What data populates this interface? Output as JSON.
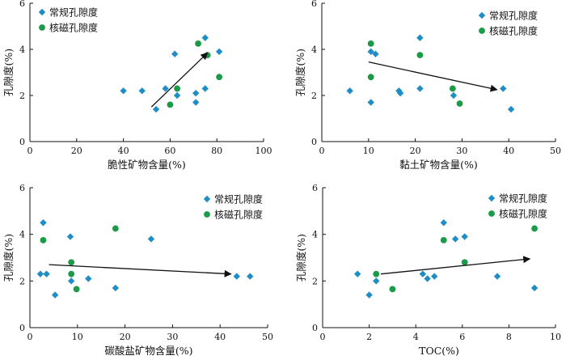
{
  "colors": {
    "conventional": "#1f8ec6",
    "nmr": "#1b9a47",
    "axis": "#111111",
    "arrow": "#111111"
  },
  "legend": {
    "conventional": "常规孔隙度",
    "nmr": "核磁孔隙度",
    "placement": "top-left"
  },
  "chart_data": [
    {
      "type": "scatter",
      "xlabel": "脆性矿物含量(%)",
      "ylabel": "孔隙度(%)",
      "xlim": [
        0,
        100
      ],
      "ylim": [
        0,
        6
      ],
      "xticks": [
        0,
        20,
        40,
        60,
        80,
        100
      ],
      "yticks": [
        0,
        2,
        4,
        6
      ],
      "legend_position": "top-left",
      "series": [
        {
          "name": "常规孔隙度",
          "marker": "diamond",
          "x": [
            40,
            48,
            54,
            58,
            62,
            63,
            71,
            71,
            75,
            75,
            81
          ],
          "y": [
            2.2,
            2.2,
            1.4,
            2.3,
            3.8,
            2.0,
            2.1,
            1.7,
            4.5,
            2.3,
            3.9
          ]
        },
        {
          "name": "核磁孔隙度",
          "marker": "circle",
          "x": [
            60,
            63,
            72,
            76,
            81
          ],
          "y": [
            1.6,
            2.3,
            4.25,
            3.75,
            2.8
          ]
        }
      ],
      "trend_arrow": {
        "from": [
          52,
          1.5
        ],
        "to": [
          76,
          3.85
        ]
      }
    },
    {
      "type": "scatter",
      "xlabel": "黏土矿物含量(%)",
      "ylabel": "孔隙度(%)",
      "xlim": [
        0,
        50
      ],
      "ylim": [
        0,
        6
      ],
      "xticks": [
        0,
        10,
        20,
        30,
        40,
        50
      ],
      "yticks": [
        0,
        2,
        4,
        6
      ],
      "legend_position": "top-right",
      "series": [
        {
          "name": "常规孔隙度",
          "marker": "diamond",
          "x": [
            6,
            10.5,
            10.5,
            11.5,
            16.5,
            16.8,
            21,
            21,
            28.2,
            38.8,
            40.5
          ],
          "y": [
            2.2,
            1.7,
            3.9,
            3.8,
            2.2,
            2.1,
            4.5,
            2.3,
            2.0,
            2.3,
            1.4
          ]
        },
        {
          "name": "核磁孔隙度",
          "marker": "circle",
          "x": [
            10.5,
            10.5,
            21,
            28,
            29.5
          ],
          "y": [
            4.25,
            2.8,
            3.75,
            2.3,
            1.65
          ]
        }
      ],
      "trend_arrow": {
        "from": [
          10,
          3.45
        ],
        "to": [
          37.5,
          2.25
        ]
      }
    },
    {
      "type": "scatter",
      "xlabel": "碳酸盐矿物含量(%)",
      "ylabel": "孔隙度(%)",
      "xlim": [
        0,
        50
      ],
      "ylim": [
        0,
        6
      ],
      "xticks": [
        0,
        10,
        20,
        30,
        40,
        50
      ],
      "yticks": [
        0,
        2,
        4,
        6
      ],
      "legend_position": "top-right",
      "series": [
        {
          "name": "常规孔隙度",
          "marker": "diamond",
          "x": [
            2.2,
            2.8,
            3.5,
            5.3,
            8.5,
            8.7,
            12.3,
            18,
            25.5,
            43.5,
            46.3
          ],
          "y": [
            2.3,
            4.5,
            2.3,
            1.4,
            3.9,
            2.0,
            2.1,
            1.7,
            3.8,
            2.2,
            2.2
          ]
        },
        {
          "name": "核磁孔隙度",
          "marker": "circle",
          "x": [
            2.8,
            8.7,
            8.7,
            9.8,
            18
          ],
          "y": [
            3.75,
            2.8,
            2.3,
            1.65,
            4.25
          ]
        }
      ],
      "trend_arrow": {
        "from": [
          4,
          2.7
        ],
        "to": [
          42.3,
          2.3
        ]
      }
    },
    {
      "type": "scatter",
      "xlabel": "TOC(%)",
      "ylabel": "孔隙度(%)",
      "xlim": [
        0,
        10
      ],
      "ylim": [
        0,
        6
      ],
      "xticks": [
        0,
        2,
        4,
        6,
        8,
        10
      ],
      "yticks": [
        0,
        2,
        4,
        6
      ],
      "legend_position": "top-right",
      "series": [
        {
          "name": "常规孔隙度",
          "marker": "diamond",
          "x": [
            1.5,
            2.0,
            2.3,
            4.3,
            4.5,
            4.8,
            5.2,
            5.7,
            6.1,
            7.5,
            9.1
          ],
          "y": [
            2.3,
            1.4,
            2.0,
            2.3,
            2.1,
            2.2,
            4.5,
            3.8,
            3.9,
            2.2,
            1.7
          ]
        },
        {
          "name": "核磁孔隙度",
          "marker": "circle",
          "x": [
            2.3,
            3.0,
            5.2,
            6.1,
            9.1
          ],
          "y": [
            2.3,
            1.65,
            3.75,
            2.8,
            4.25
          ]
        }
      ],
      "trend_arrow": {
        "from": [
          2.5,
          2.3
        ],
        "to": [
          8.9,
          2.95
        ]
      }
    }
  ]
}
